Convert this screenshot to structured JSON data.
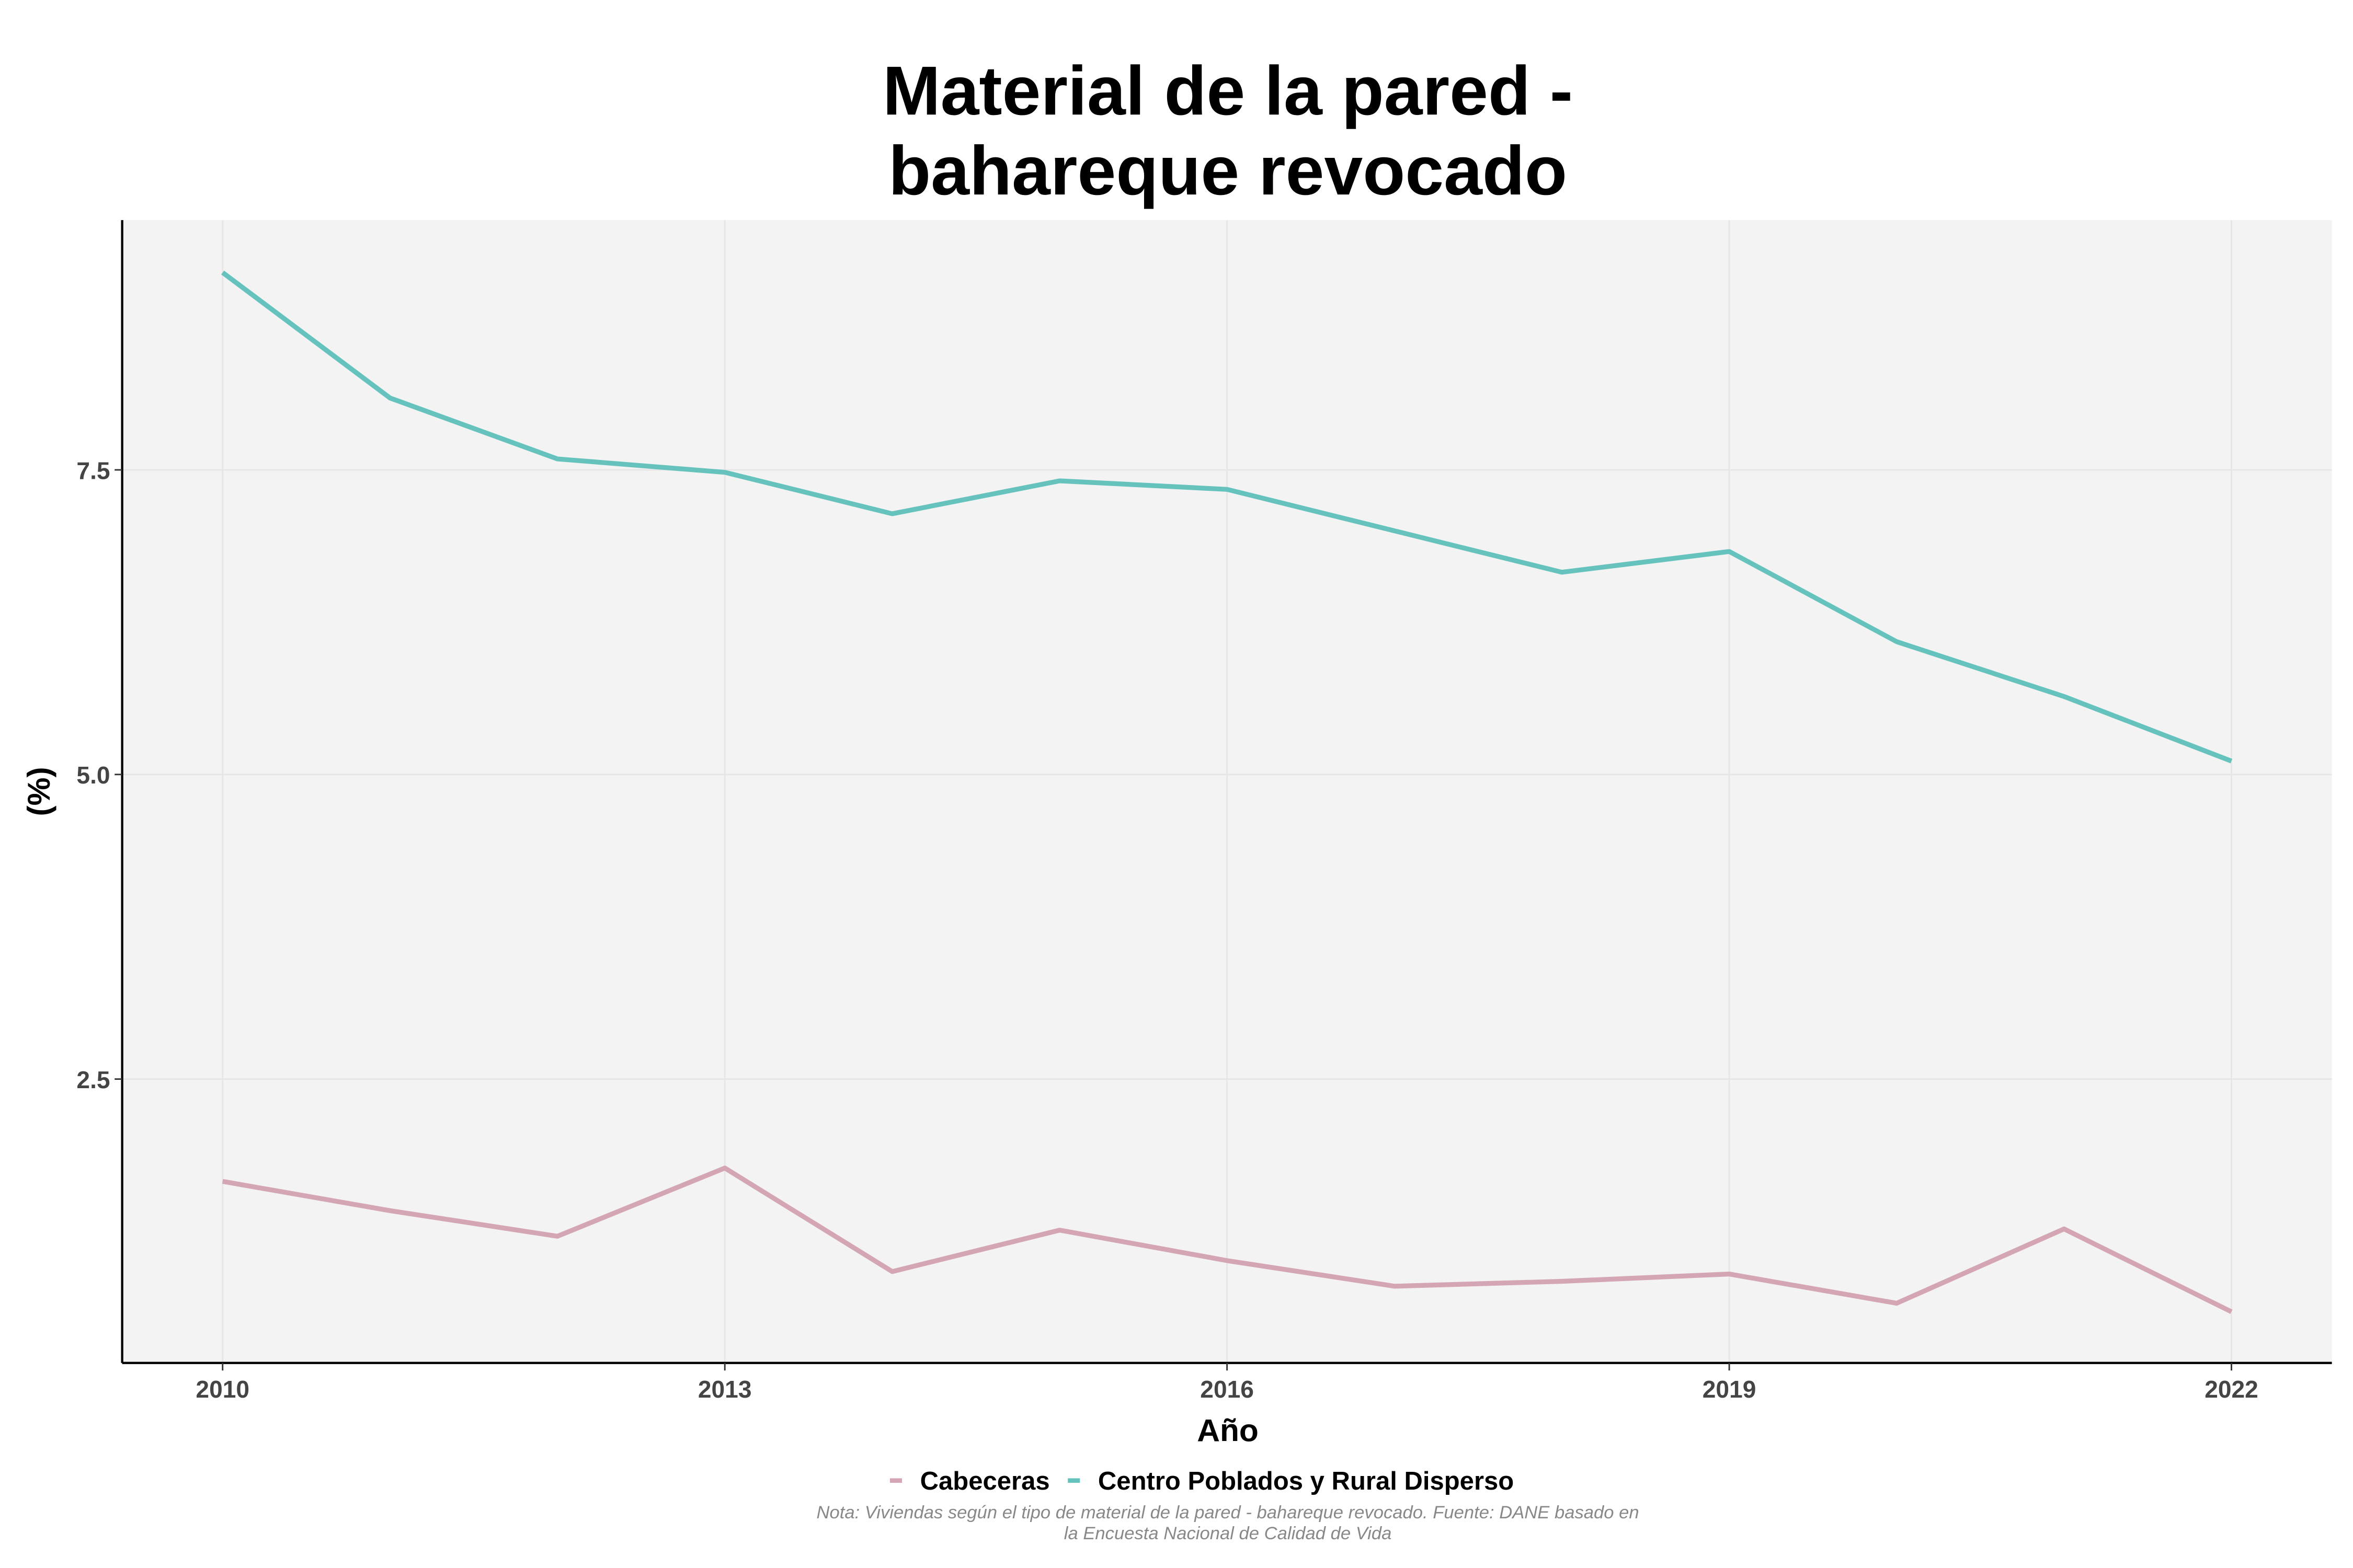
{
  "chart_data": {
    "type": "line",
    "title": [
      "Material de la pared -",
      "bahareque revocado"
    ],
    "x_label": "Año",
    "y_label": "(%)",
    "note": [
      "Nota: Viviendas según el tipo de material de la pared - bahareque revocado. Fuente: DANE basado en",
      "la Encuesta Nacional de Calidad de Vida"
    ],
    "x": [
      2010,
      2011,
      2012,
      2013,
      2014,
      2015,
      2016,
      2017,
      2018,
      2019,
      2020,
      2021,
      2022
    ],
    "series": [
      {
        "name": "Cabeceras",
        "color": "#d4a5b2",
        "values": [
          1.66,
          1.42,
          1.21,
          1.77,
          0.92,
          1.26,
          1.01,
          0.8,
          0.84,
          0.9,
          0.66,
          1.27,
          0.59
        ]
      },
      {
        "name": "Centro Poblados y Rural Disperso",
        "color": "#66c2bd",
        "values": [
          9.12,
          8.09,
          7.59,
          7.48,
          7.14,
          7.41,
          7.34,
          7.0,
          6.66,
          6.83,
          6.09,
          5.64,
          5.11
        ]
      }
    ],
    "xlim": [
      2009.4,
      2022.6
    ],
    "ylim": [
      0.17,
      9.55
    ],
    "xticks": [
      2010,
      2013,
      2016,
      2019,
      2022
    ],
    "yticks": [
      2.5,
      {
        "value": 5,
        "label": "5.0"
      },
      7.5
    ],
    "grid": true,
    "legend": "bottom"
  }
}
